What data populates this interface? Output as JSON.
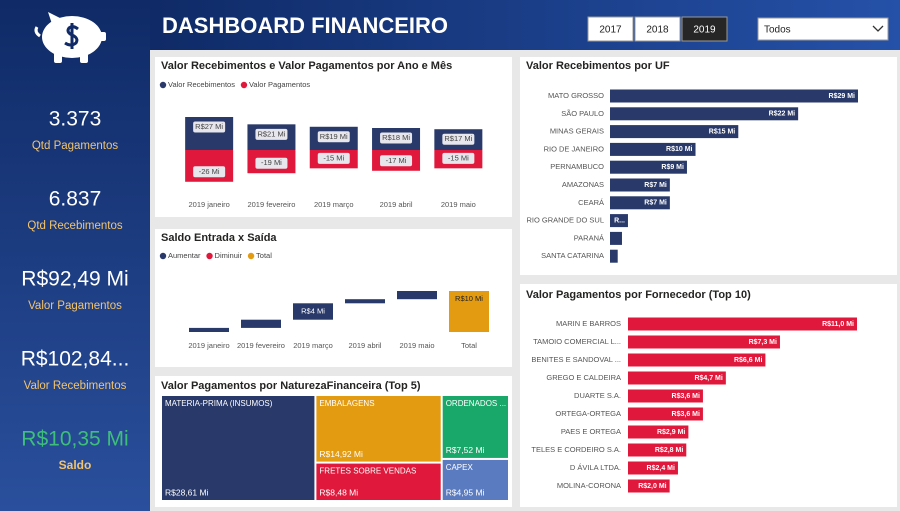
{
  "header": {
    "title": "DASHBOARD FINANCEIRO",
    "years": [
      "2017",
      "2018",
      "2019"
    ],
    "dropdown": "Todos"
  },
  "kpis": [
    {
      "value": "3.373",
      "label": "Qtd Pagamentos",
      "color": "#ffffff"
    },
    {
      "value": "6.837",
      "label": "Qtd Recebimentos",
      "color": "#ffffff"
    },
    {
      "value": "R$92,49 Mi",
      "label": "Valor Pagamentos",
      "color": "#ffffff"
    },
    {
      "value": "R$102,84...",
      "label": "Valor Recebimentos",
      "color": "#ffffff"
    },
    {
      "value": "R$10,35 Mi",
      "label": "Saldo",
      "color": "#3dbf7a"
    }
  ],
  "chart_data": [
    {
      "type": "bar",
      "title": "Valor Recebimentos e Valor Pagamentos por Ano e Mês",
      "categories": [
        "2019 janeiro",
        "2019 fevereiro",
        "2019 março",
        "2019 abril",
        "2019 maio"
      ],
      "series": [
        {
          "name": "Valor Recebimentos",
          "color": "#28396a",
          "values": [
            27,
            21,
            19,
            18,
            17
          ],
          "value_labels": [
            "R$27 Mi",
            "R$21 Mi",
            "R$19 Mi",
            "R$18 Mi",
            "R$17 Mi"
          ]
        },
        {
          "name": "Valor Pagamentos",
          "color": "#e0193c",
          "values": [
            -26,
            -19,
            -15,
            -17,
            -15
          ],
          "value_labels": [
            "-26 Mi",
            "-19 Mi",
            "-15 Mi",
            "-17 Mi",
            "-15 Mi"
          ]
        }
      ]
    },
    {
      "type": "waterfall",
      "title": "Saldo Entrada x Saída",
      "categories": [
        "2019 janeiro",
        "2019 fevereiro",
        "2019 março",
        "2019 abril",
        "2019 maio",
        "Total"
      ],
      "series": [
        {
          "name": "Aumentar",
          "color": "#28396a",
          "values": [
            1,
            2,
            4,
            1,
            2,
            null
          ],
          "value_labels": [
            null,
            null,
            "R$4 Mi",
            null,
            null,
            null
          ]
        },
        {
          "name": "Diminuir",
          "color": "#e0193c",
          "values": [
            null,
            null,
            null,
            null,
            null,
            null
          ]
        },
        {
          "name": "Total",
          "color": "#e39b12",
          "values": [
            null,
            null,
            null,
            null,
            null,
            10
          ],
          "value_labels": [
            null,
            null,
            null,
            null,
            null,
            "R$10 Mi"
          ]
        }
      ]
    },
    {
      "type": "hbar",
      "title": "Valor Recebimentos por UF",
      "color": "#28396a",
      "categories": [
        "MATO GROSSO",
        "SÃO PAULO",
        "MINAS GERAIS",
        "RIO DE JANEIRO",
        "PERNAMBUCO",
        "AMAZONAS",
        "CEARÁ",
        "RIO GRANDE DO SUL",
        "PARANÁ",
        "SANTA CATARINA"
      ],
      "values": [
        29,
        22,
        15,
        10,
        9,
        7,
        7,
        2.1,
        1.4,
        0.9
      ],
      "value_labels": [
        "R$29 Mi",
        "R$22 Mi",
        "R$15 Mi",
        "R$10 Mi",
        "R$9 Mi",
        "R$7 Mi",
        "R$7 Mi",
        "R...",
        null,
        null
      ]
    },
    {
      "type": "hbar",
      "title": "Valor Pagamentos por Fornecedor (Top 10)",
      "color": "#e0193c",
      "categories": [
        "MARIN E BARROS",
        "TAMOIO COMERCIAL L...",
        "BENITES E SANDOVAL ...",
        "GREGO E CALDEIRA",
        "DUARTE S.A.",
        "ORTEGA-ORTEGA",
        "PAES E ORTEGA",
        "TELES E CORDEIRO S.A.",
        "D ÁVILA LTDA.",
        "MOLINA-CORONA"
      ],
      "values": [
        11.0,
        7.3,
        6.6,
        4.7,
        3.6,
        3.6,
        2.9,
        2.8,
        2.4,
        2.0
      ],
      "value_labels": [
        "R$11,0 Mi",
        "R$7,3 Mi",
        "R$6,6 Mi",
        "R$4,7 Mi",
        "R$3,6 Mi",
        "R$3,6 Mi",
        "R$2,9 Mi",
        "R$2,8 Mi",
        "R$2,4 Mi",
        "R$2,0 Mi"
      ]
    },
    {
      "type": "treemap",
      "title": "Valor Pagamentos por NaturezaFinanceira (Top 5)",
      "categories": [
        "MATERIA-PRIMA (INSUMOS)",
        "EMBALAGENS",
        "FRETES SOBRE VENDAS",
        "ORDENADOS ...",
        "CAPEX"
      ],
      "values": [
        28.61,
        14.92,
        8.48,
        7.52,
        4.95
      ],
      "value_labels": [
        "R$28,61 Mi",
        "R$14,92 Mi",
        "R$8,48 Mi",
        "R$7,52 Mi",
        "R$4,95 Mi"
      ],
      "colors": [
        "#28396a",
        "#e39b12",
        "#e0193c",
        "#1aa86a",
        "#5a7bc0"
      ]
    }
  ]
}
